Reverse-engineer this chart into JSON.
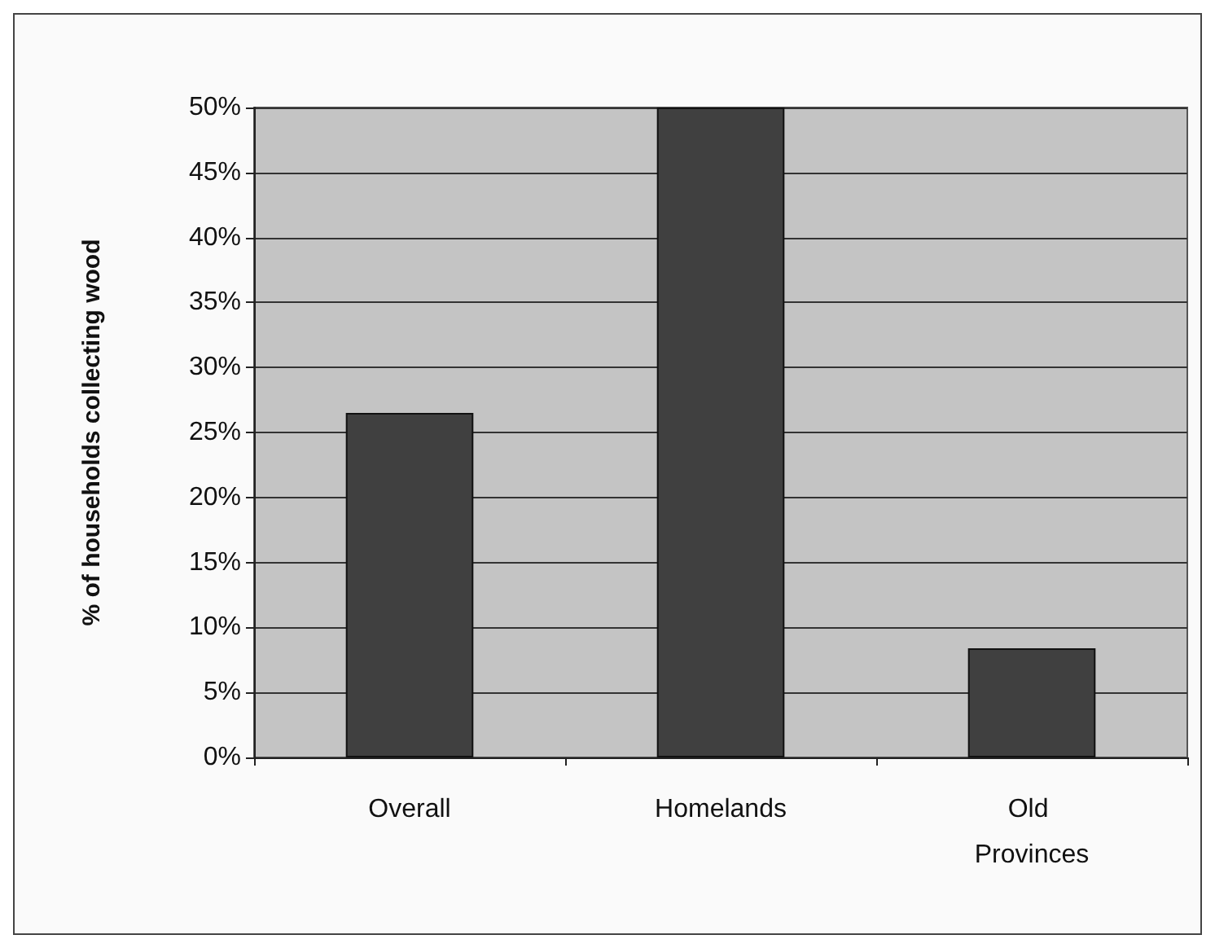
{
  "chart_data": {
    "type": "bar",
    "ylabel": "% of households collecting wood",
    "categories": [
      "Overall",
      "Homelands",
      "Old Provinces"
    ],
    "values": [
      26.5,
      50,
      8.4
    ],
    "color": "#404040",
    "ylim": [
      0,
      50
    ],
    "yticks": [
      {
        "value": 0,
        "label": "0%"
      },
      {
        "value": 5,
        "label": "5%"
      },
      {
        "value": 10,
        "label": "10%"
      },
      {
        "value": 15,
        "label": "15%"
      },
      {
        "value": 20,
        "label": "20%"
      },
      {
        "value": 25,
        "label": "25%"
      },
      {
        "value": 30,
        "label": "30%"
      },
      {
        "value": 35,
        "label": "35%"
      },
      {
        "value": 40,
        "label": "40%"
      },
      {
        "value": 45,
        "label": "45%"
      },
      {
        "value": 50,
        "label": "50%"
      }
    ],
    "grid": "y"
  }
}
